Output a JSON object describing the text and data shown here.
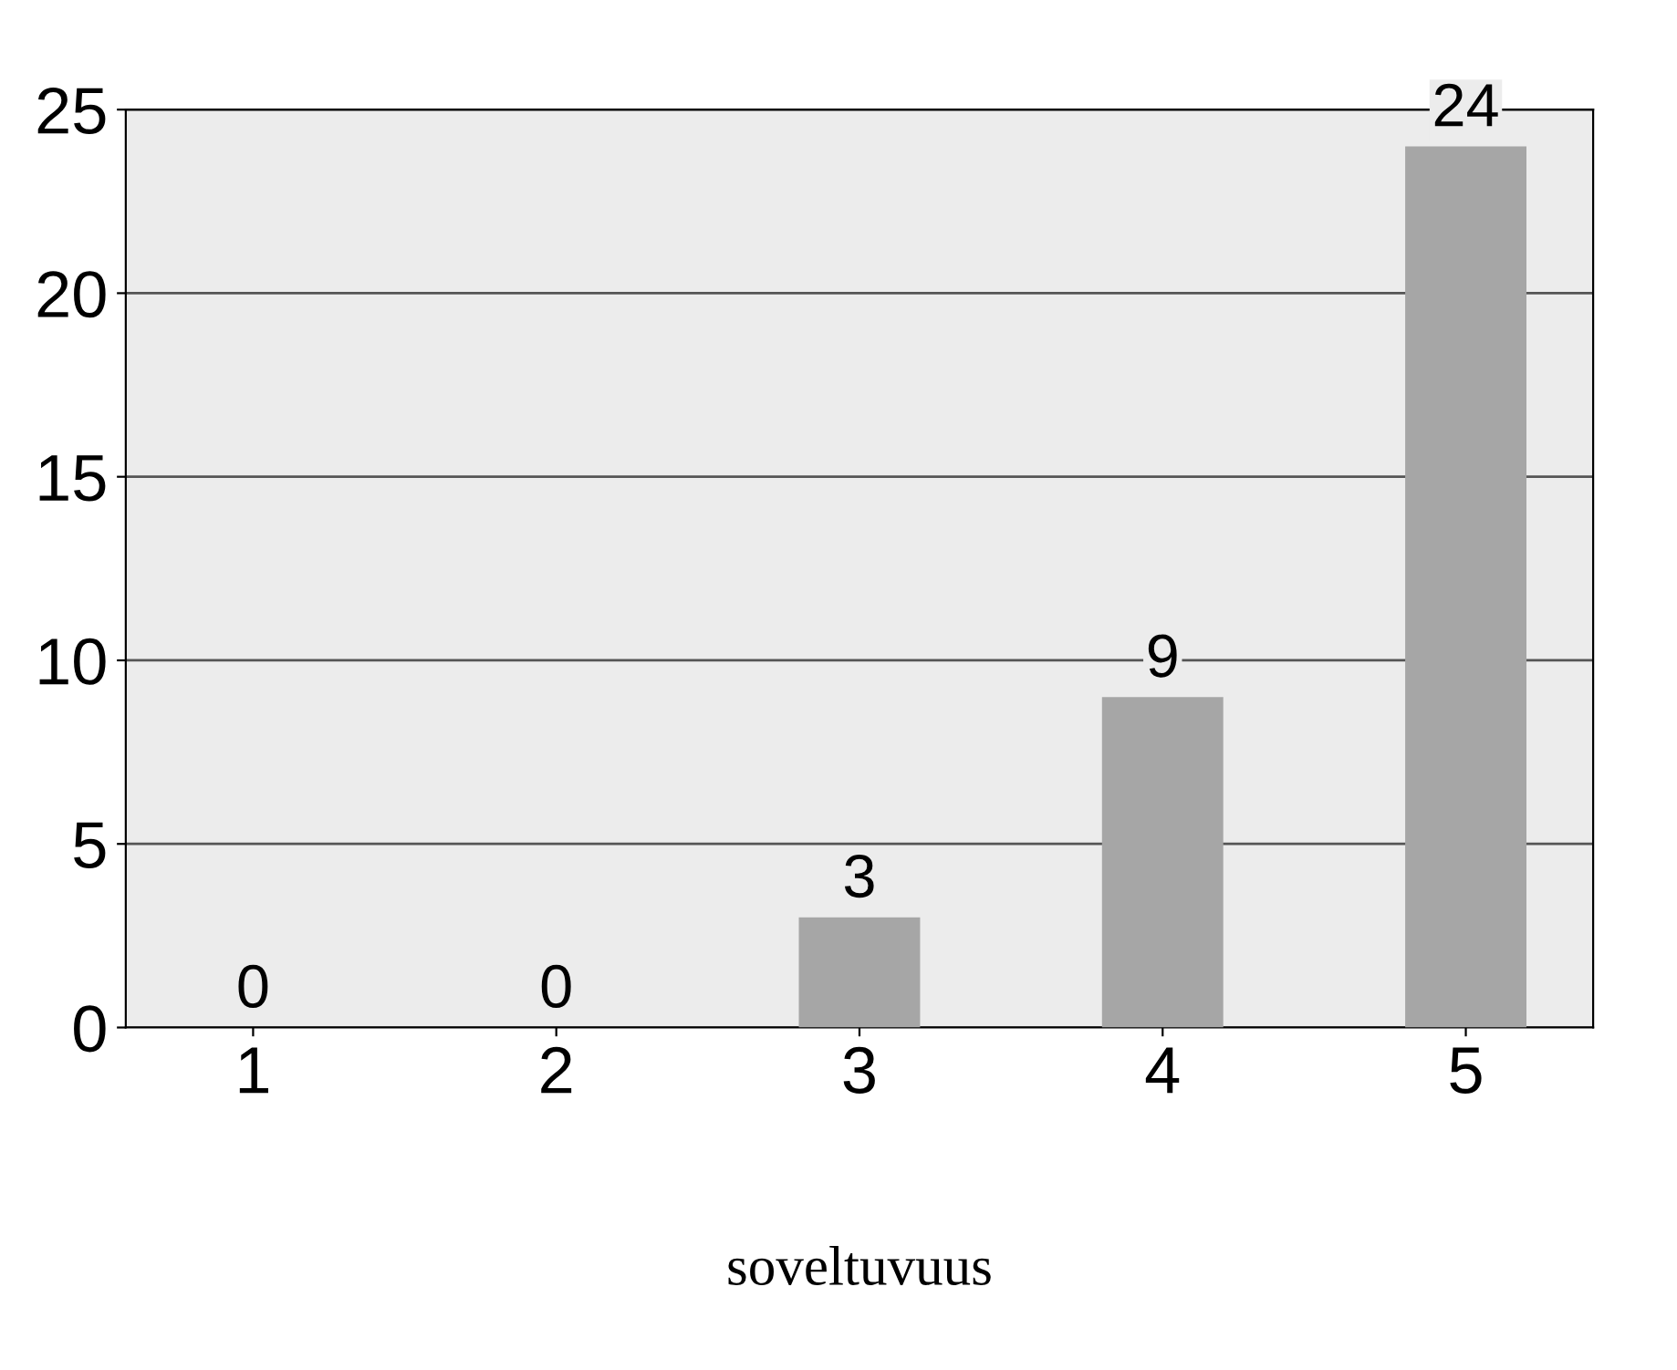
{
  "chart_data": {
    "type": "bar",
    "xlabel": "soveltuvuus",
    "categories": [
      "1",
      "2",
      "3",
      "4",
      "5"
    ],
    "values": [
      0,
      0,
      3,
      9,
      24
    ],
    "color": "#a6a6a6",
    "ylim": [
      0,
      25
    ],
    "yticks": [
      0,
      5,
      10,
      15,
      20,
      25
    ],
    "grid": "y",
    "data_labels": true
  }
}
